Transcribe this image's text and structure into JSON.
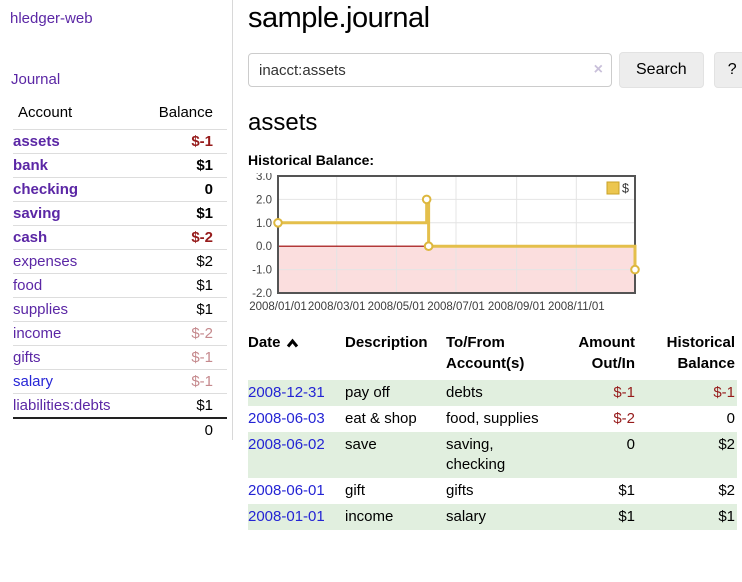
{
  "app": {
    "brand": "hledger-web",
    "nav_journal": "Journal"
  },
  "sidebar": {
    "header": {
      "account": "Account",
      "balance": "Balance"
    },
    "accounts": [
      {
        "name": "assets",
        "balance": "$-1",
        "indent": 1,
        "bold": true,
        "balance_style": "neg"
      },
      {
        "name": "bank",
        "balance": "$1",
        "indent": 2,
        "bold": true,
        "balance_style": "pos"
      },
      {
        "name": "checking",
        "balance": "0",
        "indent": 3,
        "bold": true,
        "balance_style": "pos"
      },
      {
        "name": "saving",
        "balance": "$1",
        "indent": 3,
        "bold": true,
        "balance_style": "pos"
      },
      {
        "name": "cash",
        "balance": "$-2",
        "indent": 2,
        "bold": true,
        "balance_style": "neg"
      },
      {
        "name": "expenses",
        "balance": "$2",
        "indent": 1,
        "bold": false,
        "balance_style": "pos"
      },
      {
        "name": "food",
        "balance": "$1",
        "indent": 2,
        "bold": false,
        "balance_style": "pos"
      },
      {
        "name": "supplies",
        "balance": "$1",
        "indent": 2,
        "bold": false,
        "balance_style": "pos"
      },
      {
        "name": "income",
        "balance": "$-2",
        "indent": 1,
        "bold": false,
        "balance_style": "fadeneg"
      },
      {
        "name": "gifts",
        "balance": "$-1",
        "indent": 2,
        "bold": false,
        "balance_style": "fadeneg"
      },
      {
        "name": "salary",
        "balance": "$-1",
        "indent": 2,
        "bold": false,
        "balance_style": "fadeneg",
        "link_color": "blue"
      },
      {
        "name": "liabilities:debts",
        "balance": "$1",
        "indent": 1,
        "bold": false,
        "balance_style": "pos"
      }
    ],
    "total": "0"
  },
  "header": {
    "title": "sample.journal"
  },
  "search": {
    "value": "inacct:assets",
    "clear_icon": "×",
    "button_label": "Search",
    "help_label": "?"
  },
  "main": {
    "account_title": "assets",
    "chart_label": "Historical Balance:"
  },
  "chart_data": {
    "type": "line",
    "title": "Historical Balance:",
    "legend": {
      "label": "$",
      "position": "top-right"
    },
    "x_start": "2008-01-01",
    "x_end": "2008-12-31",
    "ylim": [
      -2,
      3
    ],
    "yticks": [
      3,
      2,
      1,
      0,
      -1,
      -2
    ],
    "xticks": [
      {
        "label": "2008/01/01",
        "date": "2008-01-01"
      },
      {
        "label": "2008/03/01",
        "date": "2008-03-01"
      },
      {
        "label": "2008/05/01",
        "date": "2008-05-01"
      },
      {
        "label": "2008/07/01",
        "date": "2008-07-01"
      },
      {
        "label": "2008/09/01",
        "date": "2008-09-01"
      },
      {
        "label": "2008/11/01",
        "date": "2008-11-01"
      }
    ],
    "series": [
      {
        "name": "$",
        "type": "step",
        "points": [
          {
            "date": "2008-01-01",
            "value": 1
          },
          {
            "date": "2008-06-01",
            "value": 2
          },
          {
            "date": "2008-06-03",
            "value": 0
          },
          {
            "date": "2008-12-31",
            "value": -1
          }
        ]
      }
    ],
    "colors": {
      "line": "#e4bf4b",
      "marker_fill": "#ffffff",
      "marker_stroke": "#ddb73e",
      "negative_region": "#fbdede",
      "zero_line": "#9b0000",
      "grid": "#e4e4e4",
      "border": "#545454",
      "legend_fill": "#ecc64f",
      "legend_stroke": "#c9a227"
    }
  },
  "register": {
    "headers": {
      "date": "Date",
      "description": "Description",
      "accounts": "To/From Account(s)",
      "amount": "Amount Out/In",
      "balance": "Historical Balance"
    },
    "rows": [
      {
        "date": "2008-12-31",
        "description": "pay off",
        "accounts": "debts",
        "amount": "$-1",
        "amount_neg": true,
        "balance": "$-1",
        "balance_neg": true
      },
      {
        "date": "2008-06-03",
        "description": "eat & shop",
        "accounts": "food, supplies",
        "amount": "$-2",
        "amount_neg": true,
        "balance": "0",
        "balance_neg": false
      },
      {
        "date": "2008-06-02",
        "description": "save",
        "accounts": "saving, checking",
        "amount": "0",
        "amount_neg": false,
        "balance": "$2",
        "balance_neg": false
      },
      {
        "date": "2008-06-01",
        "description": "gift",
        "accounts": "gifts",
        "amount": "$1",
        "amount_neg": false,
        "balance": "$2",
        "balance_neg": false
      },
      {
        "date": "2008-01-01",
        "description": "income",
        "accounts": "salary",
        "amount": "$1",
        "amount_neg": false,
        "balance": "$1",
        "balance_neg": false
      }
    ]
  }
}
